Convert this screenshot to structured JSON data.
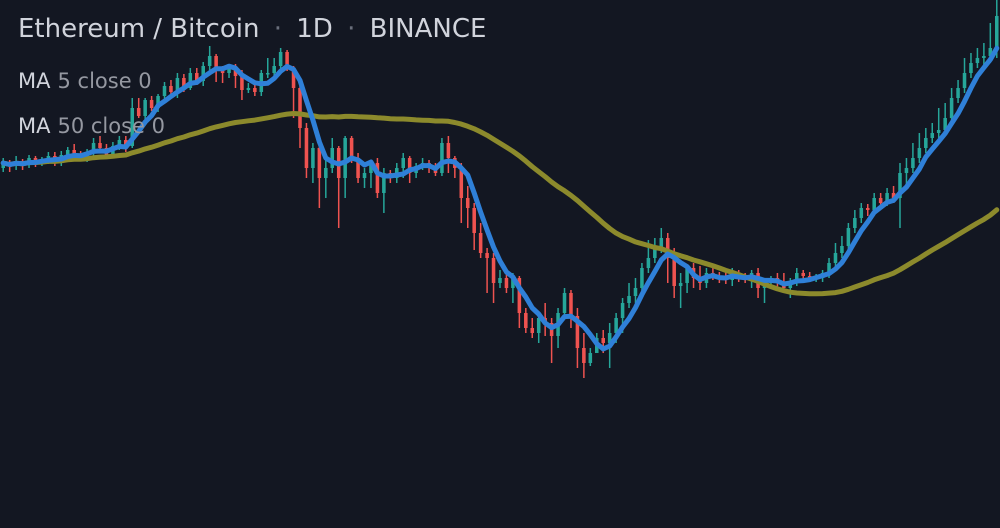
{
  "header": {
    "symbol": "Ethereum / Bitcoin",
    "separator": "·",
    "interval": "1D",
    "exchange": "BINANCE"
  },
  "indicators": [
    {
      "name": "MA",
      "params": "5 close 0",
      "color": "#2f80d8"
    },
    {
      "name": "MA",
      "params": "50 close 0",
      "color": "#8c8a2c"
    }
  ],
  "colors": {
    "background": "#131722",
    "up": "#26a69a",
    "down": "#ef5350"
  },
  "chart_data": {
    "type": "candlestick",
    "y_range": [
      0,
      528
    ],
    "candles": [
      [
        360,
        365,
        356,
        370
      ],
      [
        365,
        362,
        356,
        368
      ],
      [
        362,
        367,
        358,
        372
      ],
      [
        367,
        363,
        358,
        369
      ],
      [
        363,
        370,
        360,
        373
      ],
      [
        370,
        366,
        361,
        372
      ],
      [
        366,
        368,
        362,
        371
      ],
      [
        368,
        372,
        364,
        376
      ],
      [
        372,
        366,
        362,
        376
      ],
      [
        366,
        373,
        362,
        377
      ],
      [
        373,
        378,
        368,
        381
      ],
      [
        378,
        374,
        372,
        384
      ],
      [
        374,
        370,
        368,
        377
      ],
      [
        370,
        376,
        366,
        379
      ],
      [
        376,
        385,
        372,
        390
      ],
      [
        385,
        380,
        376,
        392
      ],
      [
        380,
        373,
        369,
        384
      ],
      [
        373,
        382,
        370,
        386
      ],
      [
        382,
        388,
        378,
        392
      ],
      [
        388,
        382,
        376,
        392
      ],
      [
        382,
        420,
        380,
        430
      ],
      [
        420,
        412,
        410,
        430
      ],
      [
        412,
        428,
        405,
        430
      ],
      [
        428,
        420,
        417,
        432
      ],
      [
        420,
        432,
        416,
        434
      ],
      [
        432,
        442,
        427,
        446
      ],
      [
        442,
        436,
        432,
        448
      ],
      [
        436,
        450,
        430,
        455
      ],
      [
        450,
        440,
        436,
        454
      ],
      [
        440,
        455,
        438,
        460
      ],
      [
        455,
        447,
        443,
        460
      ],
      [
        447,
        462,
        442,
        466
      ],
      [
        462,
        472,
        458,
        482
      ],
      [
        472,
        460,
        446,
        474
      ],
      [
        460,
        455,
        445,
        462
      ],
      [
        455,
        460,
        450,
        463
      ],
      [
        460,
        452,
        440,
        464
      ],
      [
        452,
        438,
        428,
        458
      ],
      [
        438,
        440,
        435,
        445
      ],
      [
        440,
        436,
        432,
        445
      ],
      [
        436,
        455,
        432,
        458
      ],
      [
        455,
        455,
        450,
        470
      ],
      [
        455,
        462,
        452,
        470
      ],
      [
        462,
        476,
        455,
        480
      ],
      [
        476,
        460,
        457,
        478
      ],
      [
        460,
        440,
        410,
        462
      ],
      [
        440,
        400,
        380,
        442
      ],
      [
        400,
        360,
        350,
        405
      ],
      [
        360,
        380,
        345,
        385
      ],
      [
        380,
        350,
        320,
        385
      ],
      [
        350,
        360,
        330,
        370
      ],
      [
        360,
        380,
        355,
        390
      ],
      [
        380,
        350,
        300,
        382
      ],
      [
        350,
        390,
        330,
        392
      ],
      [
        390,
        370,
        365,
        392
      ],
      [
        370,
        350,
        345,
        375
      ],
      [
        350,
        355,
        340,
        360
      ],
      [
        355,
        365,
        340,
        368
      ],
      [
        365,
        335,
        330,
        370
      ],
      [
        335,
        355,
        315,
        360
      ],
      [
        355,
        350,
        345,
        358
      ],
      [
        350,
        360,
        345,
        365
      ],
      [
        360,
        370,
        350,
        375
      ],
      [
        370,
        355,
        345,
        372
      ],
      [
        355,
        362,
        350,
        365
      ],
      [
        362,
        365,
        358,
        370
      ],
      [
        365,
        360,
        355,
        368
      ],
      [
        360,
        355,
        352,
        365
      ],
      [
        355,
        385,
        352,
        390
      ],
      [
        385,
        370,
        355,
        392
      ],
      [
        370,
        360,
        350,
        372
      ],
      [
        360,
        330,
        305,
        365
      ],
      [
        330,
        320,
        300,
        342
      ],
      [
        320,
        295,
        278,
        325
      ],
      [
        295,
        275,
        270,
        305
      ],
      [
        275,
        270,
        235,
        280
      ],
      [
        270,
        245,
        225,
        275
      ],
      [
        245,
        250,
        240,
        258
      ],
      [
        250,
        240,
        235,
        255
      ],
      [
        240,
        250,
        225,
        255
      ],
      [
        250,
        215,
        200,
        252
      ],
      [
        215,
        200,
        195,
        220
      ],
      [
        200,
        195,
        190,
        210
      ],
      [
        195,
        210,
        185,
        215
      ],
      [
        210,
        205,
        192,
        225
      ],
      [
        205,
        192,
        165,
        210
      ],
      [
        192,
        215,
        180,
        220
      ],
      [
        215,
        235,
        210,
        240
      ],
      [
        235,
        212,
        200,
        238
      ],
      [
        212,
        180,
        160,
        220
      ],
      [
        180,
        165,
        150,
        195
      ],
      [
        165,
        175,
        162,
        180
      ],
      [
        175,
        190,
        175,
        195
      ],
      [
        190,
        185,
        175,
        198
      ],
      [
        185,
        195,
        160,
        205
      ],
      [
        195,
        210,
        185,
        215
      ],
      [
        210,
        225,
        195,
        230
      ],
      [
        225,
        232,
        220,
        245
      ],
      [
        232,
        240,
        225,
        250
      ],
      [
        240,
        260,
        235,
        265
      ],
      [
        260,
        270,
        255,
        288
      ],
      [
        270,
        280,
        265,
        290
      ],
      [
        280,
        290,
        275,
        300
      ],
      [
        290,
        270,
        245,
        295
      ],
      [
        270,
        242,
        230,
        280
      ],
      [
        242,
        245,
        220,
        255
      ],
      [
        245,
        260,
        235,
        262
      ],
      [
        260,
        250,
        240,
        265
      ],
      [
        250,
        245,
        238,
        262
      ],
      [
        245,
        255,
        240,
        260
      ],
      [
        255,
        252,
        248,
        262
      ],
      [
        252,
        250,
        245,
        256
      ],
      [
        250,
        248,
        244,
        256
      ],
      [
        248,
        255,
        242,
        260
      ],
      [
        255,
        250,
        246,
        258
      ],
      [
        250,
        248,
        245,
        255
      ],
      [
        248,
        255,
        240,
        258
      ],
      [
        255,
        240,
        230,
        260
      ],
      [
        240,
        245,
        225,
        250
      ],
      [
        245,
        250,
        240,
        252
      ],
      [
        250,
        245,
        240,
        255
      ],
      [
        245,
        240,
        235,
        255
      ],
      [
        240,
        245,
        230,
        250
      ],
      [
        245,
        255,
        242,
        260
      ],
      [
        255,
        252,
        248,
        258
      ],
      [
        252,
        250,
        246,
        256
      ],
      [
        250,
        250,
        246,
        254
      ],
      [
        250,
        255,
        246,
        258
      ],
      [
        255,
        265,
        250,
        270
      ],
      [
        265,
        275,
        260,
        285
      ],
      [
        275,
        282,
        270,
        292
      ],
      [
        282,
        300,
        278,
        305
      ],
      [
        300,
        310,
        295,
        318
      ],
      [
        310,
        320,
        305,
        325
      ],
      [
        320,
        318,
        312,
        324
      ],
      [
        318,
        330,
        315,
        335
      ],
      [
        330,
        325,
        320,
        335
      ],
      [
        325,
        335,
        322,
        340
      ],
      [
        335,
        330,
        325,
        342
      ],
      [
        330,
        355,
        300,
        365
      ],
      [
        355,
        360,
        340,
        370
      ],
      [
        360,
        370,
        355,
        385
      ],
      [
        370,
        380,
        365,
        395
      ],
      [
        380,
        390,
        375,
        400
      ],
      [
        390,
        395,
        385,
        405
      ],
      [
        395,
        398,
        390,
        420
      ],
      [
        398,
        410,
        395,
        425
      ],
      [
        410,
        430,
        405,
        440
      ],
      [
        430,
        440,
        425,
        448
      ],
      [
        440,
        455,
        435,
        470
      ],
      [
        455,
        465,
        450,
        475
      ],
      [
        465,
        470,
        460,
        480
      ],
      [
        470,
        472,
        462,
        485
      ],
      [
        472,
        480,
        465,
        505
      ],
      [
        480,
        512,
        470,
        528
      ]
    ]
  }
}
